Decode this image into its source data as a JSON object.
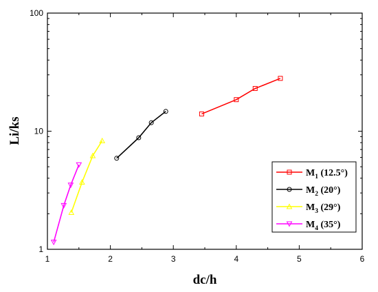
{
  "chart_data": {
    "type": "line",
    "title": "",
    "xlabel": "dc/h",
    "ylabel": "Li/ks",
    "xlim": [
      1,
      6
    ],
    "ylim": [
      1,
      100
    ],
    "yscale": "log",
    "xticks": [
      1,
      2,
      3,
      4,
      5,
      6
    ],
    "xtick_labels": [
      "1",
      "2",
      "3",
      "4",
      "5",
      "6"
    ],
    "yticks": [
      1,
      10,
      100
    ],
    "ytick_labels": [
      "1",
      "10",
      "100"
    ],
    "grid": false,
    "legend_position": "lower-right",
    "series": [
      {
        "name": "M1 (12.5°)",
        "name_main": "M",
        "name_sub": "1",
        "name_rest": " (12.5°)",
        "color": "#ff0000",
        "marker": "square",
        "x": [
          3.45,
          4.0,
          4.3,
          4.7
        ],
        "y": [
          14.0,
          18.5,
          23.0,
          28.0
        ]
      },
      {
        "name": "M2 (20°)",
        "name_main": "M",
        "name_sub": "2",
        "name_rest": " (20°)",
        "color": "#000000",
        "marker": "circle",
        "x": [
          2.1,
          2.45,
          2.65,
          2.88
        ],
        "y": [
          5.9,
          8.8,
          11.8,
          14.7
        ]
      },
      {
        "name": "M3 (29°)",
        "name_main": "M",
        "name_sub": "3",
        "name_rest": " (29°)",
        "color": "#ffff00",
        "marker": "triangle-up",
        "x": [
          1.38,
          1.55,
          1.72,
          1.87
        ],
        "y": [
          2.05,
          3.7,
          6.2,
          8.3
        ]
      },
      {
        "name": "M4 (35°)",
        "name_main": "M",
        "name_sub": "4",
        "name_rest": " (35°)",
        "color": "#ff00ff",
        "marker": "triangle-down",
        "x": [
          1.1,
          1.26,
          1.37,
          1.5
        ],
        "y": [
          1.15,
          2.35,
          3.5,
          5.2
        ]
      }
    ]
  }
}
